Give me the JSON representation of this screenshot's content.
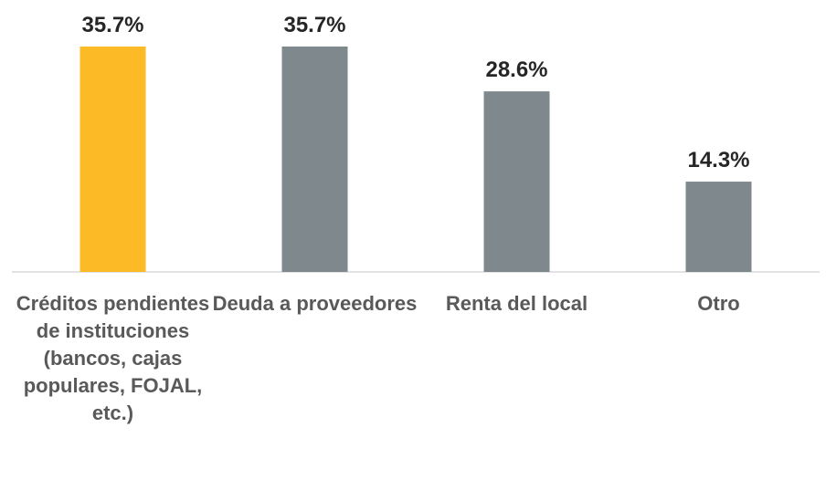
{
  "chart_data": {
    "type": "bar",
    "categories": [
      "Créditos pendientes de instituciones (bancos, cajas populares, FOJAL, etc.)",
      "Deuda a proveedores",
      "Renta del local",
      "Otro"
    ],
    "values": [
      35.7,
      35.7,
      28.6,
      14.3
    ],
    "value_labels": [
      "35.7%",
      "35.7%",
      "28.6%",
      "14.3%"
    ],
    "colors": [
      "#fbba26",
      "#7f888d",
      "#7f888d",
      "#7f888d"
    ]
  }
}
